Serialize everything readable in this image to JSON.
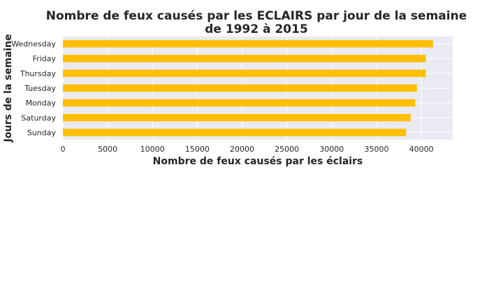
{
  "chart_data": {
    "type": "bar",
    "orientation": "horizontal",
    "title_lines": [
      "Nombre de feux causés par les ECLAIRS par jour de la semaine",
      "de 1992 à 2015"
    ],
    "xlabel": "Nombre de feux causés par les éclairs",
    "ylabel": "Jours de la semaine",
    "categories": [
      "Wednesday",
      "Friday",
      "Thursday",
      "Tuesday",
      "Monday",
      "Saturday",
      "Sunday"
    ],
    "values": [
      41300,
      40500,
      40500,
      39500,
      39300,
      38800,
      38300
    ],
    "xlim": [
      0,
      43500
    ],
    "xticks": [
      0,
      5000,
      10000,
      15000,
      20000,
      25000,
      30000,
      35000,
      40000
    ],
    "grid": true,
    "colors": {
      "bar": "#FFBF00",
      "background": "#EAEAF2",
      "grid": "#FFFFFF"
    }
  }
}
